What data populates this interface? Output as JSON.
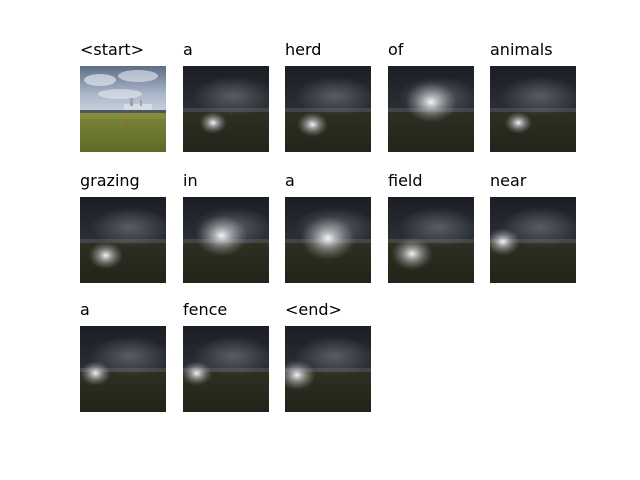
{
  "caption_words": [
    {
      "word": "<start>",
      "kind": "original",
      "focus": null
    },
    {
      "word": "a",
      "kind": "attention",
      "focus": [
        0.35,
        0.66,
        0.16
      ]
    },
    {
      "word": "herd",
      "kind": "attention",
      "focus": [
        0.32,
        0.68,
        0.18
      ]
    },
    {
      "word": "of",
      "kind": "attention",
      "focus": [
        0.5,
        0.42,
        0.3
      ]
    },
    {
      "word": "animals",
      "kind": "attention",
      "focus": [
        0.33,
        0.66,
        0.16
      ]
    },
    {
      "word": "grazing",
      "kind": "attention",
      "focus": [
        0.3,
        0.68,
        0.2
      ]
    },
    {
      "word": "in",
      "kind": "attention",
      "focus": [
        0.45,
        0.45,
        0.3
      ]
    },
    {
      "word": "a",
      "kind": "attention",
      "focus": [
        0.5,
        0.48,
        0.32
      ]
    },
    {
      "word": "field",
      "kind": "attention",
      "focus": [
        0.28,
        0.66,
        0.24
      ]
    },
    {
      "word": "near",
      "kind": "attention",
      "focus": [
        0.15,
        0.52,
        0.2
      ]
    },
    {
      "word": "a",
      "kind": "attention",
      "focus": [
        0.18,
        0.55,
        0.18
      ]
    },
    {
      "word": "fence",
      "kind": "attention",
      "focus": [
        0.16,
        0.55,
        0.18
      ]
    },
    {
      "word": "<end>",
      "kind": "attention",
      "focus": [
        0.14,
        0.57,
        0.22
      ]
    }
  ],
  "colors": {
    "sky_dark": "#1f2329",
    "ground_dark": "#2d2c1a",
    "sky_photo": "#7f8fa8",
    "grass_photo": "#6f7a30"
  }
}
